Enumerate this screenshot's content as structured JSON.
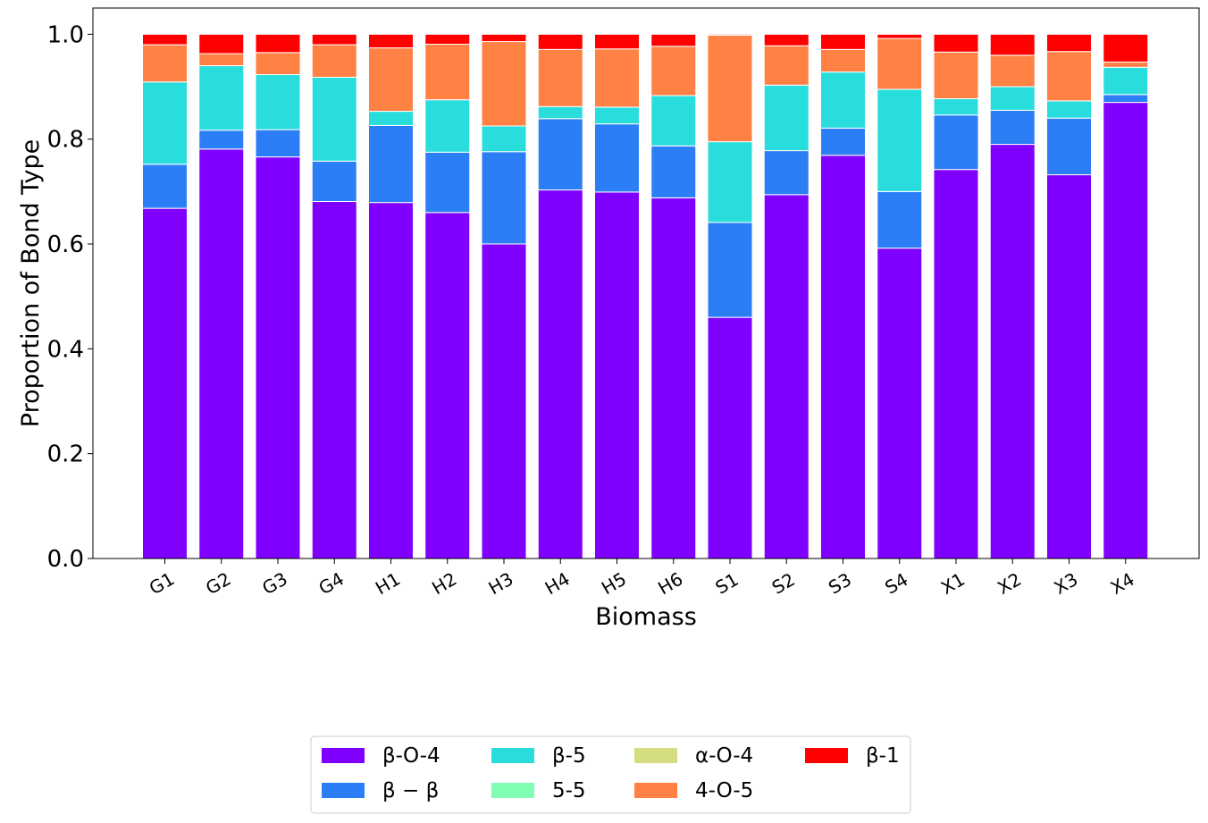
{
  "chart_data": {
    "type": "bar",
    "stacked": true,
    "title": "",
    "xlabel": "Biomass",
    "ylabel": "Proportion of Bond Type",
    "ylim": [
      0,
      1.05
    ],
    "yticks": [
      "0.0",
      "0.2",
      "0.4",
      "0.6",
      "0.8",
      "1.0"
    ],
    "grid": false,
    "legend_position": "bottom-center",
    "categories": [
      "G1",
      "G2",
      "G3",
      "G4",
      "H1",
      "H2",
      "H3",
      "H4",
      "H5",
      "H6",
      "S1",
      "S2",
      "S3",
      "S4",
      "X1",
      "X2",
      "X3",
      "X4"
    ],
    "series": [
      {
        "name": "β-O-4",
        "color": "#8000ff",
        "values": [
          0.668,
          0.781,
          0.766,
          0.681,
          0.679,
          0.66,
          0.6,
          0.703,
          0.699,
          0.688,
          0.46,
          0.694,
          0.769,
          0.592,
          0.742,
          0.79,
          0.732,
          0.87
        ]
      },
      {
        "name": "β − β",
        "color": "#2c7ef7",
        "values": [
          0.084,
          0.036,
          0.052,
          0.077,
          0.147,
          0.115,
          0.176,
          0.136,
          0.13,
          0.099,
          0.181,
          0.084,
          0.052,
          0.108,
          0.104,
          0.065,
          0.108,
          0.015
        ]
      },
      {
        "name": "β-5",
        "color": "#2adddd",
        "values": [
          0.157,
          0.123,
          0.105,
          0.16,
          0.027,
          0.1,
          0.049,
          0.023,
          0.032,
          0.096,
          0.154,
          0.125,
          0.107,
          0.195,
          0.031,
          0.045,
          0.033,
          0.052
        ]
      },
      {
        "name": "5-5",
        "color": "#80ffb4",
        "values": [
          0,
          0,
          0,
          0,
          0,
          0,
          0,
          0,
          0,
          0,
          0,
          0,
          0,
          0,
          0,
          0,
          0,
          0
        ]
      },
      {
        "name": "α-O-4",
        "color": "#d4dd80",
        "values": [
          0,
          0,
          0,
          0,
          0,
          0,
          0,
          0,
          0,
          0,
          0,
          0,
          0,
          0,
          0,
          0,
          0,
          0
        ]
      },
      {
        "name": "4-O-5",
        "color": "#ff8144",
        "values": [
          0.071,
          0.023,
          0.042,
          0.062,
          0.121,
          0.106,
          0.161,
          0.109,
          0.111,
          0.094,
          0.203,
          0.075,
          0.043,
          0.097,
          0.089,
          0.06,
          0.094,
          0.01
        ]
      },
      {
        "name": "β-1",
        "color": "#ff0000",
        "values": [
          0.02,
          0.037,
          0.035,
          0.02,
          0.026,
          0.019,
          0.014,
          0.029,
          0.028,
          0.023,
          0.002,
          0.022,
          0.029,
          0.008,
          0.034,
          0.04,
          0.033,
          0.053
        ]
      }
    ]
  }
}
